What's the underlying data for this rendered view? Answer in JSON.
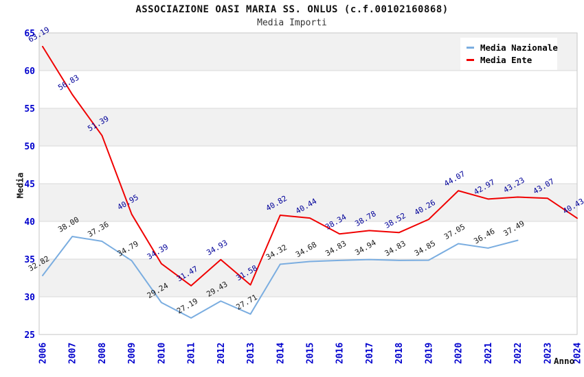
{
  "header": {
    "title": "ASSOCIAZIONE OASI MARIA SS. ONLUS (c.f.00102160868)",
    "subtitle": "Media Importi"
  },
  "axes": {
    "y_label": "Media",
    "x_label": "Anno"
  },
  "legend": {
    "position": "top-right",
    "items": [
      {
        "label": "Media Nazionale",
        "color": "#7aade0"
      },
      {
        "label": "Media Ente",
        "color": "#f00000"
      }
    ]
  },
  "style": {
    "band_color": "#f1f1f1",
    "grid_color": "#d9d9d9",
    "frame_color": "#c6c6c6",
    "tick_label_color": "#0000cd"
  },
  "chart_data": {
    "type": "line",
    "title": "ASSOCIAZIONE OASI MARIA SS. ONLUS (c.f.00102160868)",
    "subtitle": "Media Importi",
    "xlabel": "Anno",
    "ylabel": "Media",
    "ylim": [
      25,
      65
    ],
    "ytick_step": 5,
    "grid": "horizontal-bands-alternating",
    "legend_position": "top-right",
    "categories": [
      "2006",
      "2007",
      "2008",
      "2009",
      "2010",
      "2011",
      "2012",
      "2013",
      "2014",
      "2015",
      "2016",
      "2017",
      "2018",
      "2019",
      "2020",
      "2021",
      "2022",
      "2023",
      "2024"
    ],
    "series": [
      {
        "name": "Media Nazionale",
        "color": "#7aade0",
        "label_color": "#1a1a1a",
        "values": [
          32.82,
          38.0,
          37.36,
          34.79,
          29.24,
          27.19,
          29.43,
          27.71,
          34.32,
          34.68,
          34.83,
          34.94,
          34.83,
          34.85,
          37.05,
          36.46,
          37.49,
          null,
          null
        ]
      },
      {
        "name": "Media Ente",
        "color": "#f00000",
        "label_color": "#000099",
        "values": [
          63.19,
          56.83,
          51.39,
          40.95,
          34.39,
          31.47,
          34.93,
          31.58,
          40.82,
          40.44,
          38.34,
          38.78,
          38.52,
          40.26,
          44.07,
          42.97,
          43.23,
          43.07,
          40.43
        ]
      }
    ]
  }
}
